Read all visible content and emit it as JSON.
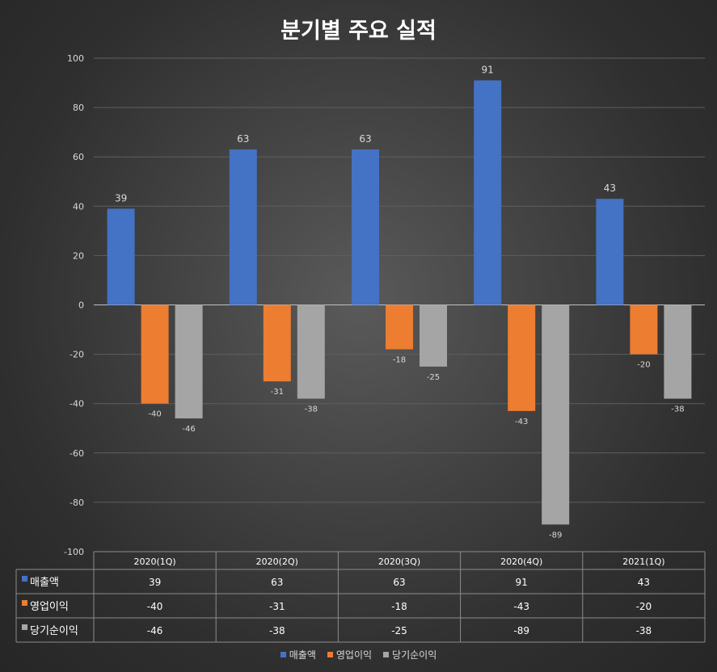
{
  "chart_data": {
    "type": "bar",
    "title": "분기별 주요 실적",
    "categories": [
      "2020(1Q)",
      "2020(2Q)",
      "2020(3Q)",
      "2020(4Q)",
      "2021(1Q)"
    ],
    "series": [
      {
        "name": "매출액",
        "values": [
          39,
          63,
          63,
          91,
          43
        ],
        "color": "#4472c4"
      },
      {
        "name": "영업이익",
        "values": [
          -40,
          -31,
          -18,
          -43,
          -20
        ],
        "color": "#ed7d31"
      },
      {
        "name": "당기순이익",
        "values": [
          -46,
          -38,
          -25,
          -89,
          -38
        ],
        "color": "#a5a5a5"
      }
    ],
    "ylim": [
      -100,
      100
    ],
    "yticks": [
      100,
      80,
      60,
      40,
      20,
      0,
      -20,
      -40,
      -60,
      -80,
      -100
    ],
    "grid": true,
    "data_table": true,
    "legend_position": "bottom"
  }
}
